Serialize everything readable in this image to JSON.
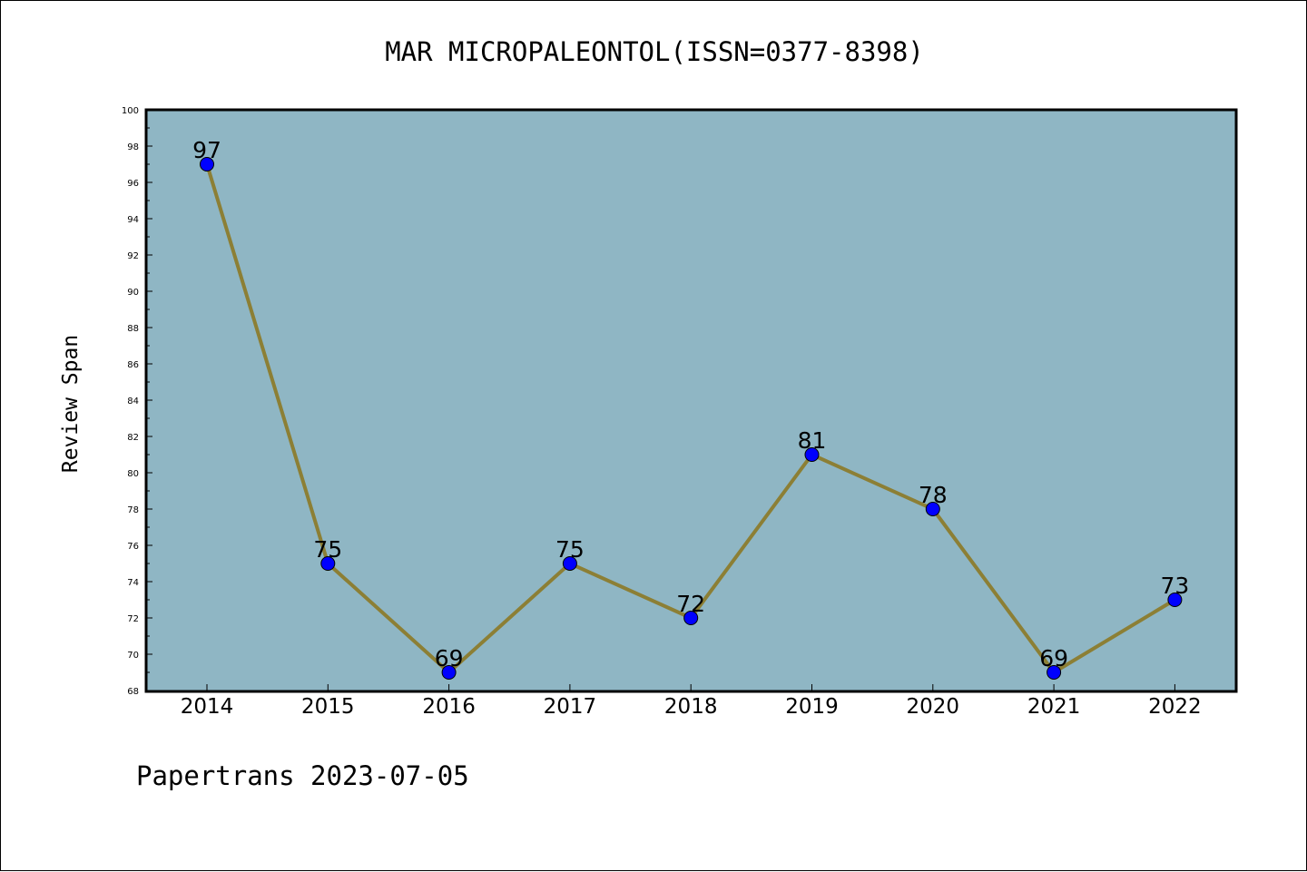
{
  "chart_data": {
    "type": "line",
    "title": "MAR MICROPALEONTOL(ISSN=0377-8398)",
    "ylabel": "Review Span",
    "xlabel": "",
    "categories": [
      "2014",
      "2015",
      "2016",
      "2017",
      "2018",
      "2019",
      "2020",
      "2021",
      "2022"
    ],
    "values": [
      97,
      75,
      69,
      75,
      72,
      81,
      78,
      69,
      73
    ],
    "ylim": [
      68,
      100
    ],
    "yticks": [
      "68",
      "70",
      "72",
      "74",
      "76",
      "78",
      "80",
      "82",
      "84",
      "86",
      "88",
      "90",
      "92",
      "94",
      "96",
      "98",
      "100"
    ],
    "grid": false,
    "colors": {
      "plot_background": "#8fb6c4",
      "line": "#8c7f35",
      "marker": "#0000ff"
    }
  },
  "footer": "Papertrans 2023-07-05"
}
